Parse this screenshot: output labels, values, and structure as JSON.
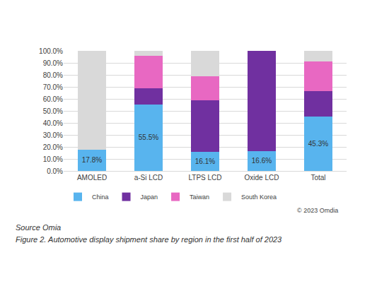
{
  "chart_data": {
    "type": "bar",
    "stacked": true,
    "categories": [
      "AMOLED",
      "a-Si LCD",
      "LTPS LCD",
      "Oxide LCD",
      "Total"
    ],
    "series": [
      {
        "name": "China",
        "color": "#58b4ee",
        "values": [
          17.8,
          55.5,
          16.1,
          16.6,
          45.3
        ],
        "value_labels": [
          "17.8%",
          "55.5%",
          "16.1%",
          "16.6%",
          "45.3%"
        ]
      },
      {
        "name": "Japan",
        "color": "#7030a0",
        "values": [
          0,
          13.5,
          42.9,
          83.4,
          21.2
        ]
      },
      {
        "name": "Taiwan",
        "color": "#e868c2",
        "values": [
          0,
          27.0,
          20.0,
          0,
          24.5
        ]
      },
      {
        "name": "South Korea",
        "color": "#d9d9d9",
        "values": [
          82.2,
          4.0,
          21.0,
          0,
          9.0
        ]
      }
    ],
    "ylim": [
      0,
      100
    ],
    "yticks": [
      {
        "value": 0,
        "label": "0.0%"
      },
      {
        "value": 10,
        "label": "10.0%"
      },
      {
        "value": 20,
        "label": "20.0%"
      },
      {
        "value": 30,
        "label": "30.0%"
      },
      {
        "value": 40,
        "label": "40.0%"
      },
      {
        "value": 50,
        "label": "50.0%"
      },
      {
        "value": 60,
        "label": "60.0%"
      },
      {
        "value": 70,
        "label": "70.0%"
      },
      {
        "value": 80,
        "label": "80.0%"
      },
      {
        "value": 90,
        "label": "90.0%"
      },
      {
        "value": 100,
        "label": "100.0%"
      }
    ],
    "grid": true,
    "legend": "bottom",
    "annotations": [
      "© 2023 Omdia",
      "Source Omia",
      "Figure 2. Automotive display shipment share by region in the first half of 2023"
    ]
  }
}
